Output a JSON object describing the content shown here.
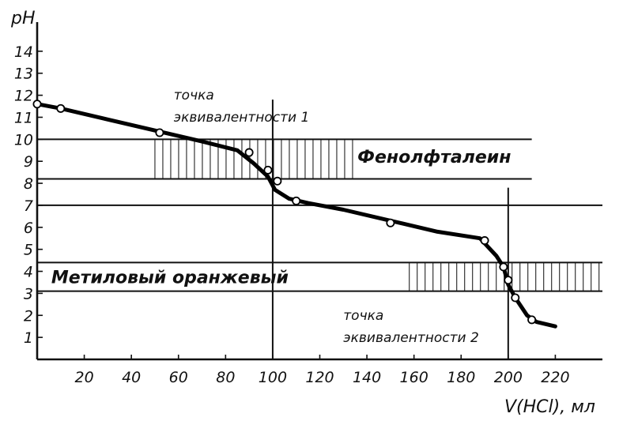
{
  "chart_data": {
    "type": "line",
    "ylabel": "pH",
    "xlabel": "V(HCl), мл",
    "xlim": [
      0,
      240
    ],
    "ylim": [
      0,
      15
    ],
    "x_ticks": [
      20,
      40,
      60,
      80,
      100,
      120,
      140,
      160,
      180,
      200,
      220
    ],
    "y_ticks": [
      1,
      2,
      3,
      4,
      5,
      6,
      7,
      8,
      9,
      10,
      11,
      12,
      13,
      14
    ],
    "grid": false,
    "series": [
      {
        "x": [
          0,
          10,
          30,
          50,
          70,
          85,
          92,
          98,
          101,
          107,
          115,
          130,
          150,
          170,
          188,
          195,
          198,
          200,
          203,
          208,
          212,
          220
        ],
        "y": [
          11.6,
          11.4,
          10.9,
          10.4,
          9.9,
          9.5,
          8.9,
          8.3,
          7.7,
          7.3,
          7.1,
          6.8,
          6.3,
          5.8,
          5.5,
          4.7,
          4.2,
          3.4,
          2.8,
          2.0,
          1.7,
          1.5
        ]
      }
    ],
    "markers": {
      "x": [
        0,
        10,
        52,
        90,
        98,
        102,
        110,
        150,
        190,
        198,
        200,
        203,
        210
      ],
      "y": [
        11.6,
        11.4,
        10.3,
        9.4,
        8.6,
        8.1,
        7.2,
        6.2,
        5.4,
        4.2,
        3.6,
        2.8,
        1.8
      ]
    },
    "reference_lines": {
      "horizontal": [
        {
          "y": 10.0,
          "x_from": 0,
          "x_to": 210
        },
        {
          "y": 8.2,
          "x_from": 0,
          "x_to": 210
        },
        {
          "y": 7.0,
          "x_from": 0,
          "x_to": 240
        },
        {
          "y": 4.4,
          "x_from": 0,
          "x_to": 240
        },
        {
          "y": 3.1,
          "x_from": 0,
          "x_to": 240
        }
      ],
      "vertical": [
        {
          "x": 100,
          "y_from": 0,
          "y_to": 11.8
        },
        {
          "x": 200,
          "y_from": 0,
          "y_to": 7.8
        }
      ]
    },
    "bands": [
      {
        "label": "Фенолфталеин",
        "x_from": 50,
        "x_to": 135,
        "y_from": 8.2,
        "y_to": 10.0
      },
      {
        "label": "Метиловый оранжевый",
        "x_from": 158,
        "x_to": 240,
        "y_from": 3.1,
        "y_to": 4.4
      }
    ],
    "annotations": [
      {
        "line1": "точка",
        "line2": "эквивалентности 1",
        "x": 58,
        "y": 11.8
      },
      {
        "line1": "точка",
        "line2": "эквивалентности 2",
        "x": 130,
        "y": 1.8
      }
    ]
  }
}
